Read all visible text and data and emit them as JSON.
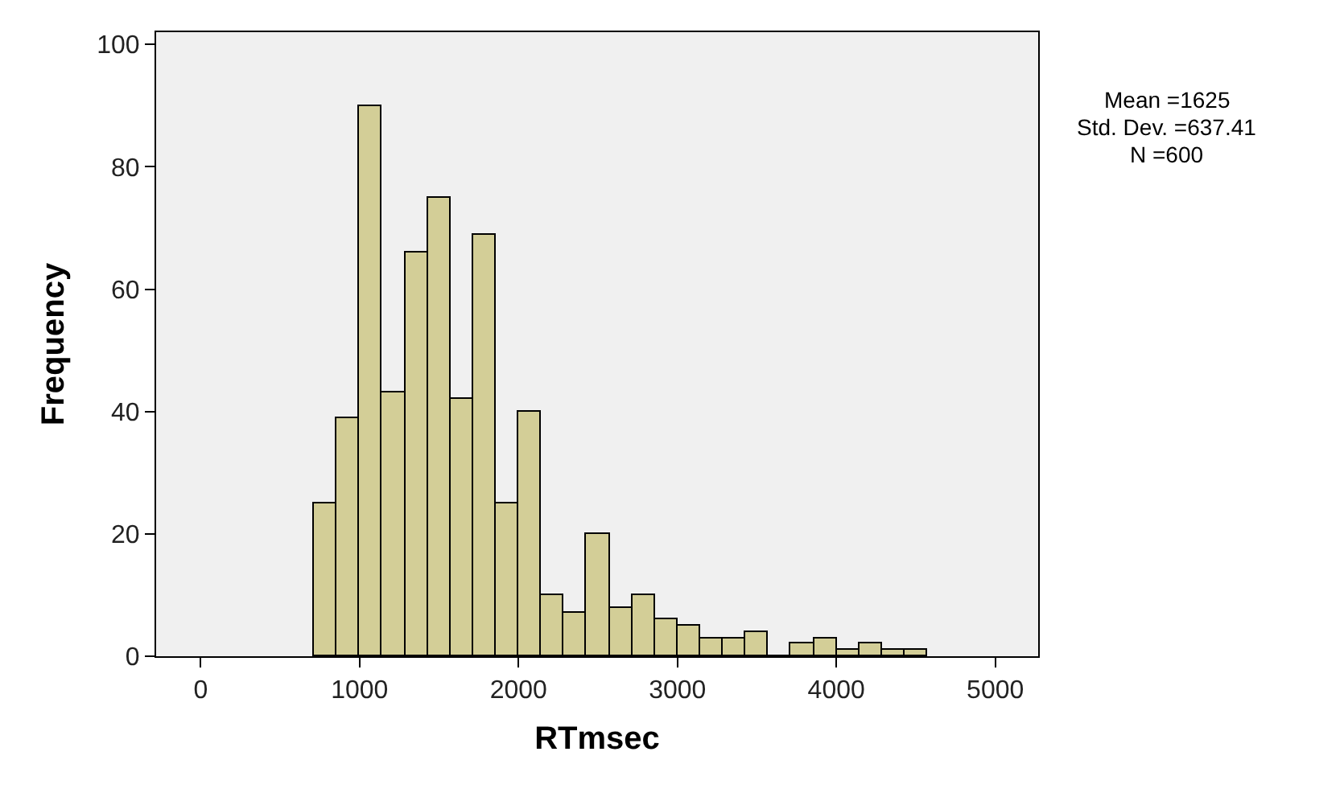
{
  "chart_data": {
    "type": "histogram",
    "xlabel": "RTmsec",
    "ylabel": "Frequency",
    "bins": [
      714.29,
      857.14,
      1000,
      1142.86,
      1285.71,
      1428.57,
      1571.43,
      1714.29,
      1857.14,
      2000,
      2142.86,
      2285.71,
      2428.57,
      2571.43,
      2714.29,
      2857.14,
      3000,
      3142.86,
      3285.71,
      3428.57,
      3571.43,
      3714.29,
      3857.14,
      4000,
      4142.86,
      4285.71,
      4428.57,
      4571.43
    ],
    "values": [
      25,
      39,
      90,
      43,
      66,
      75,
      42,
      69,
      25,
      40,
      10,
      7,
      20,
      8,
      10,
      6,
      5,
      3,
      3,
      4,
      0,
      2,
      3,
      1,
      2,
      1,
      1
    ],
    "color": "#d3ce97",
    "xlim": [
      -280,
      5270
    ],
    "xticks": [
      0,
      1000,
      2000,
      3000,
      4000,
      5000
    ],
    "ylim": [
      0,
      102
    ],
    "yticks": [
      0,
      20,
      40,
      60,
      80,
      100
    ],
    "grid": false,
    "legend": false,
    "annotations": [
      "Mean =1625",
      "Std. Dev. =637.41",
      "N =600"
    ]
  }
}
